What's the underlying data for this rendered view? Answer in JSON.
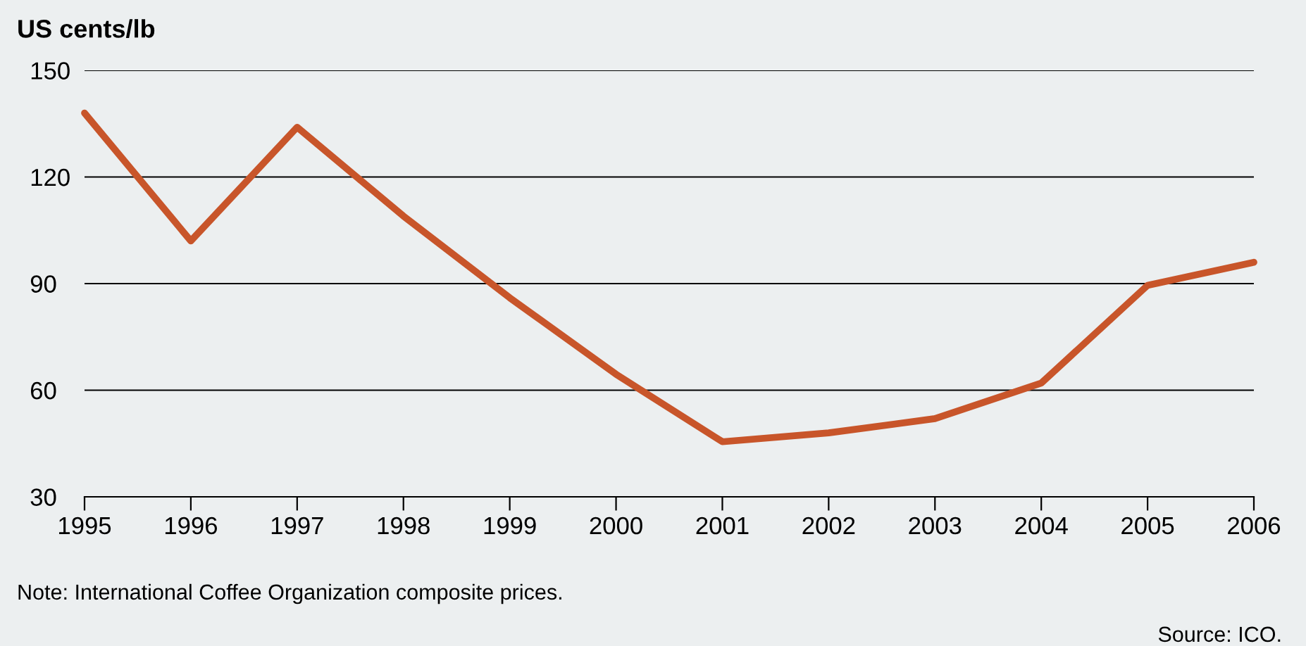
{
  "chart_data": {
    "type": "line",
    "ylabel": "US cents/lb",
    "x": [
      1995,
      1996,
      1997,
      1998,
      1999,
      2000,
      2001,
      2002,
      2003,
      2004,
      2005,
      2006
    ],
    "series": [
      {
        "color": "#c8552a",
        "values": [
          138,
          102,
          134,
          109,
          86,
          64.5,
          45.5,
          48,
          52,
          62,
          89.5,
          96
        ]
      }
    ],
    "xlim": [
      1995,
      2006
    ],
    "xticks": [
      1995,
      1996,
      1997,
      1998,
      1999,
      2000,
      2001,
      2002,
      2003,
      2004,
      2005,
      2006
    ],
    "ylim": [
      30,
      150
    ],
    "yticks": [
      30,
      60,
      90,
      120,
      150
    ],
    "grid": "y",
    "annotations": [
      "Note: International Coffee Organization composite prices.",
      "Source: ICO."
    ]
  }
}
